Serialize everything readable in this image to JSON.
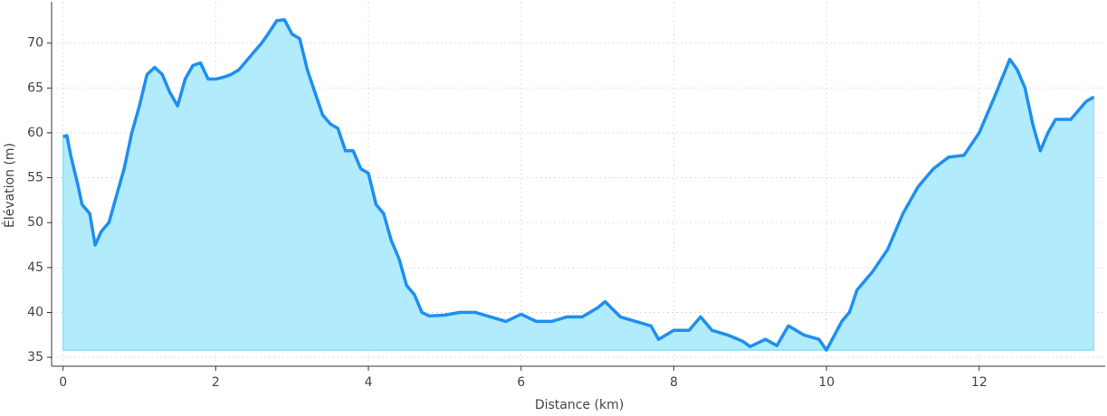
{
  "chart_data": {
    "type": "area",
    "x_label": "Distance (km)",
    "y_label": "Élévation (m)",
    "x": [
      0,
      0.05,
      0.1,
      0.2,
      0.25,
      0.35,
      0.42,
      0.5,
      0.6,
      0.7,
      0.8,
      0.9,
      1.0,
      1.1,
      1.2,
      1.3,
      1.4,
      1.5,
      1.6,
      1.7,
      1.8,
      1.9,
      2.0,
      2.1,
      2.2,
      2.3,
      2.4,
      2.5,
      2.6,
      2.7,
      2.8,
      2.9,
      3.0,
      3.1,
      3.2,
      3.3,
      3.4,
      3.5,
      3.6,
      3.7,
      3.8,
      3.9,
      4.0,
      4.1,
      4.2,
      4.3,
      4.4,
      4.5,
      4.6,
      4.7,
      4.8,
      5.0,
      5.2,
      5.4,
      5.6,
      5.8,
      6.0,
      6.2,
      6.4,
      6.6,
      6.8,
      7.0,
      7.1,
      7.3,
      7.5,
      7.7,
      7.8,
      8.0,
      8.2,
      8.35,
      8.5,
      8.7,
      8.9,
      9.0,
      9.2,
      9.35,
      9.5,
      9.7,
      9.9,
      10.0,
      10.2,
      10.3,
      10.4,
      10.6,
      10.8,
      11.0,
      11.2,
      11.4,
      11.6,
      11.8,
      12.0,
      12.2,
      12.4,
      12.5,
      12.6,
      12.7,
      12.8,
      12.9,
      13.0,
      13.2,
      13.4,
      13.5
    ],
    "values": [
      59.6,
      59.7,
      57.5,
      54,
      52,
      51,
      47.5,
      49,
      50,
      53,
      56,
      60,
      63,
      66.5,
      67.3,
      66.5,
      64.5,
      63,
      66,
      67.5,
      67.8,
      66,
      66,
      66.2,
      66.5,
      67,
      68,
      69,
      70,
      71.2,
      72.5,
      72.6,
      71,
      70.5,
      67,
      64.5,
      62,
      61,
      60.5,
      58,
      58,
      56,
      55.5,
      52,
      51,
      48,
      46,
      43,
      42,
      40,
      39.6,
      39.7,
      40,
      40,
      39.5,
      39,
      39.8,
      39,
      39,
      39.5,
      39.5,
      40.5,
      41.2,
      39.5,
      39,
      38.5,
      37,
      38,
      38,
      39.5,
      38,
      37.5,
      36.8,
      36.2,
      37,
      36.3,
      38.5,
      37.5,
      37,
      35.8,
      39,
      40,
      42.5,
      44.5,
      47,
      51,
      54,
      56,
      57.3,
      57.5,
      60,
      64,
      68.2,
      67,
      65,
      61,
      58,
      60,
      61.5,
      61.5,
      63.5,
      64
    ],
    "color": "#1e8ff0",
    "fill_color": "#b2ebfb",
    "xlim": [
      -0.15,
      13.65
    ],
    "xticks": [
      0,
      2,
      4,
      6,
      8,
      10,
      12
    ],
    "ylim": [
      34,
      74.6
    ],
    "yticks": [
      35,
      40,
      45,
      50,
      55,
      60,
      65,
      70
    ],
    "grid": true
  }
}
